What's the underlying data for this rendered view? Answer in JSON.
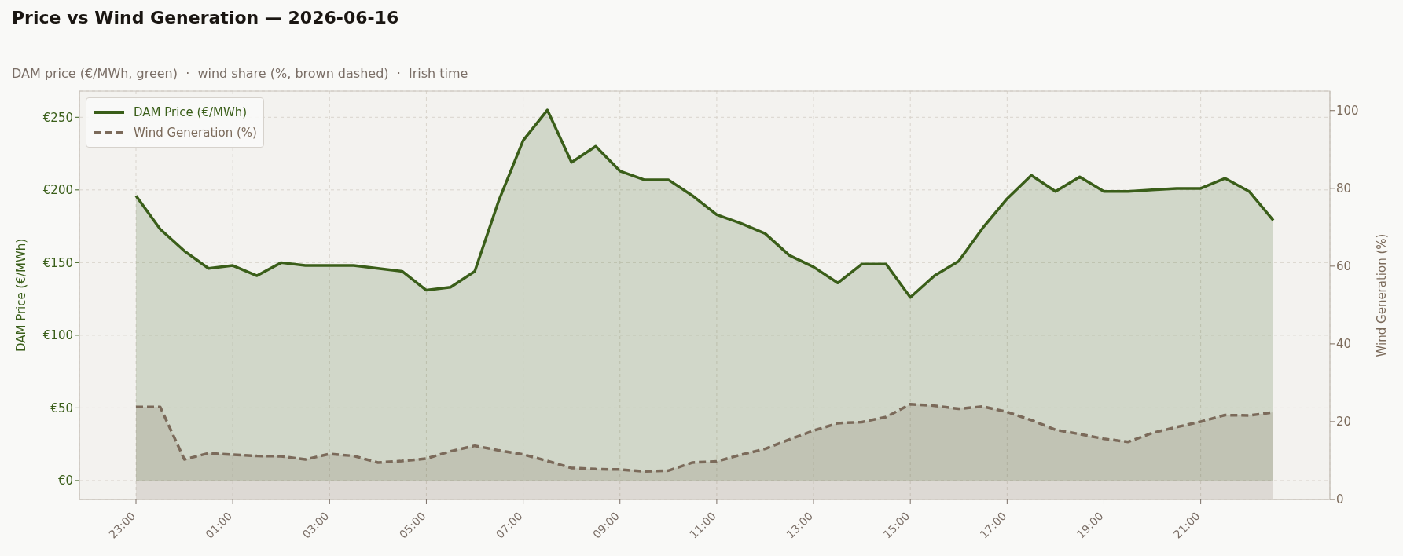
{
  "chart_data": {
    "type": "area",
    "title": "Price vs Wind Generation — 2026-06-16",
    "subtitle": "DAM price (€/MWh, green)  ·  wind share (%, brown dashed)  ·  Irish time",
    "ylabel": "DAM Price (€/MWh)",
    "y2label": "Wind Generation (%)",
    "categories": [
      "23:00",
      null,
      null,
      null,
      "01:00",
      null,
      null,
      null,
      "03:00",
      null,
      null,
      null,
      "05:00",
      null,
      null,
      null,
      "07:00",
      null,
      null,
      null,
      "09:00",
      null,
      null,
      null,
      "11:00",
      null,
      null,
      null,
      "13:00",
      null,
      null,
      null,
      "15:00",
      null,
      null,
      null,
      "17:00",
      null,
      null,
      null,
      "19:00",
      null,
      null,
      null,
      "21:00",
      null,
      null,
      null
    ],
    "series": [
      {
        "name": "DAM Price (€/MWh)",
        "color": "#3a5e19",
        "line_style": "solid",
        "values": [
          196,
          173,
          158,
          146,
          148,
          141,
          150,
          148,
          148,
          148,
          146,
          144,
          131,
          133,
          144,
          193,
          234,
          255,
          219,
          230,
          213,
          207,
          207,
          196,
          183,
          177,
          170,
          155,
          147,
          136,
          149,
          149,
          126,
          141,
          151,
          174,
          194,
          210,
          199,
          209,
          199,
          199,
          200,
          201,
          201,
          208,
          199,
          179
        ]
      },
      {
        "name": "Wind Generation (%)",
        "color": "#7b6a5a",
        "axis": "y2",
        "line_style": "dashed",
        "values": [
          23.8,
          23.8,
          10.3,
          11.9,
          11.5,
          11.2,
          11.1,
          10.3,
          11.7,
          11.2,
          9.5,
          9.9,
          10.5,
          12.4,
          13.8,
          12.6,
          11.6,
          9.9,
          8.1,
          7.8,
          7.7,
          7.2,
          7.4,
          9.5,
          9.8,
          11.5,
          13.0,
          15.4,
          17.7,
          19.6,
          19.9,
          21.2,
          24.5,
          24.1,
          23.3,
          23.9,
          22.5,
          20.4,
          17.9,
          16.8,
          15.6,
          14.8,
          17.1,
          18.6,
          20.0,
          21.7,
          21.6,
          22.4
        ]
      }
    ],
    "ylim": [
      -13,
      268
    ],
    "yticks": [
      {
        "value": 0,
        "label": "€0"
      },
      {
        "value": 50,
        "label": "€50"
      },
      {
        "value": 100,
        "label": "€100"
      },
      {
        "value": 150,
        "label": "€150"
      },
      {
        "value": 200,
        "label": "€200"
      },
      {
        "value": 250,
        "label": "€250"
      }
    ],
    "y2lim": [
      0,
      105
    ],
    "y2ticks": [
      0,
      20,
      40,
      60,
      80,
      100
    ],
    "grid": true,
    "legend": "top left"
  }
}
